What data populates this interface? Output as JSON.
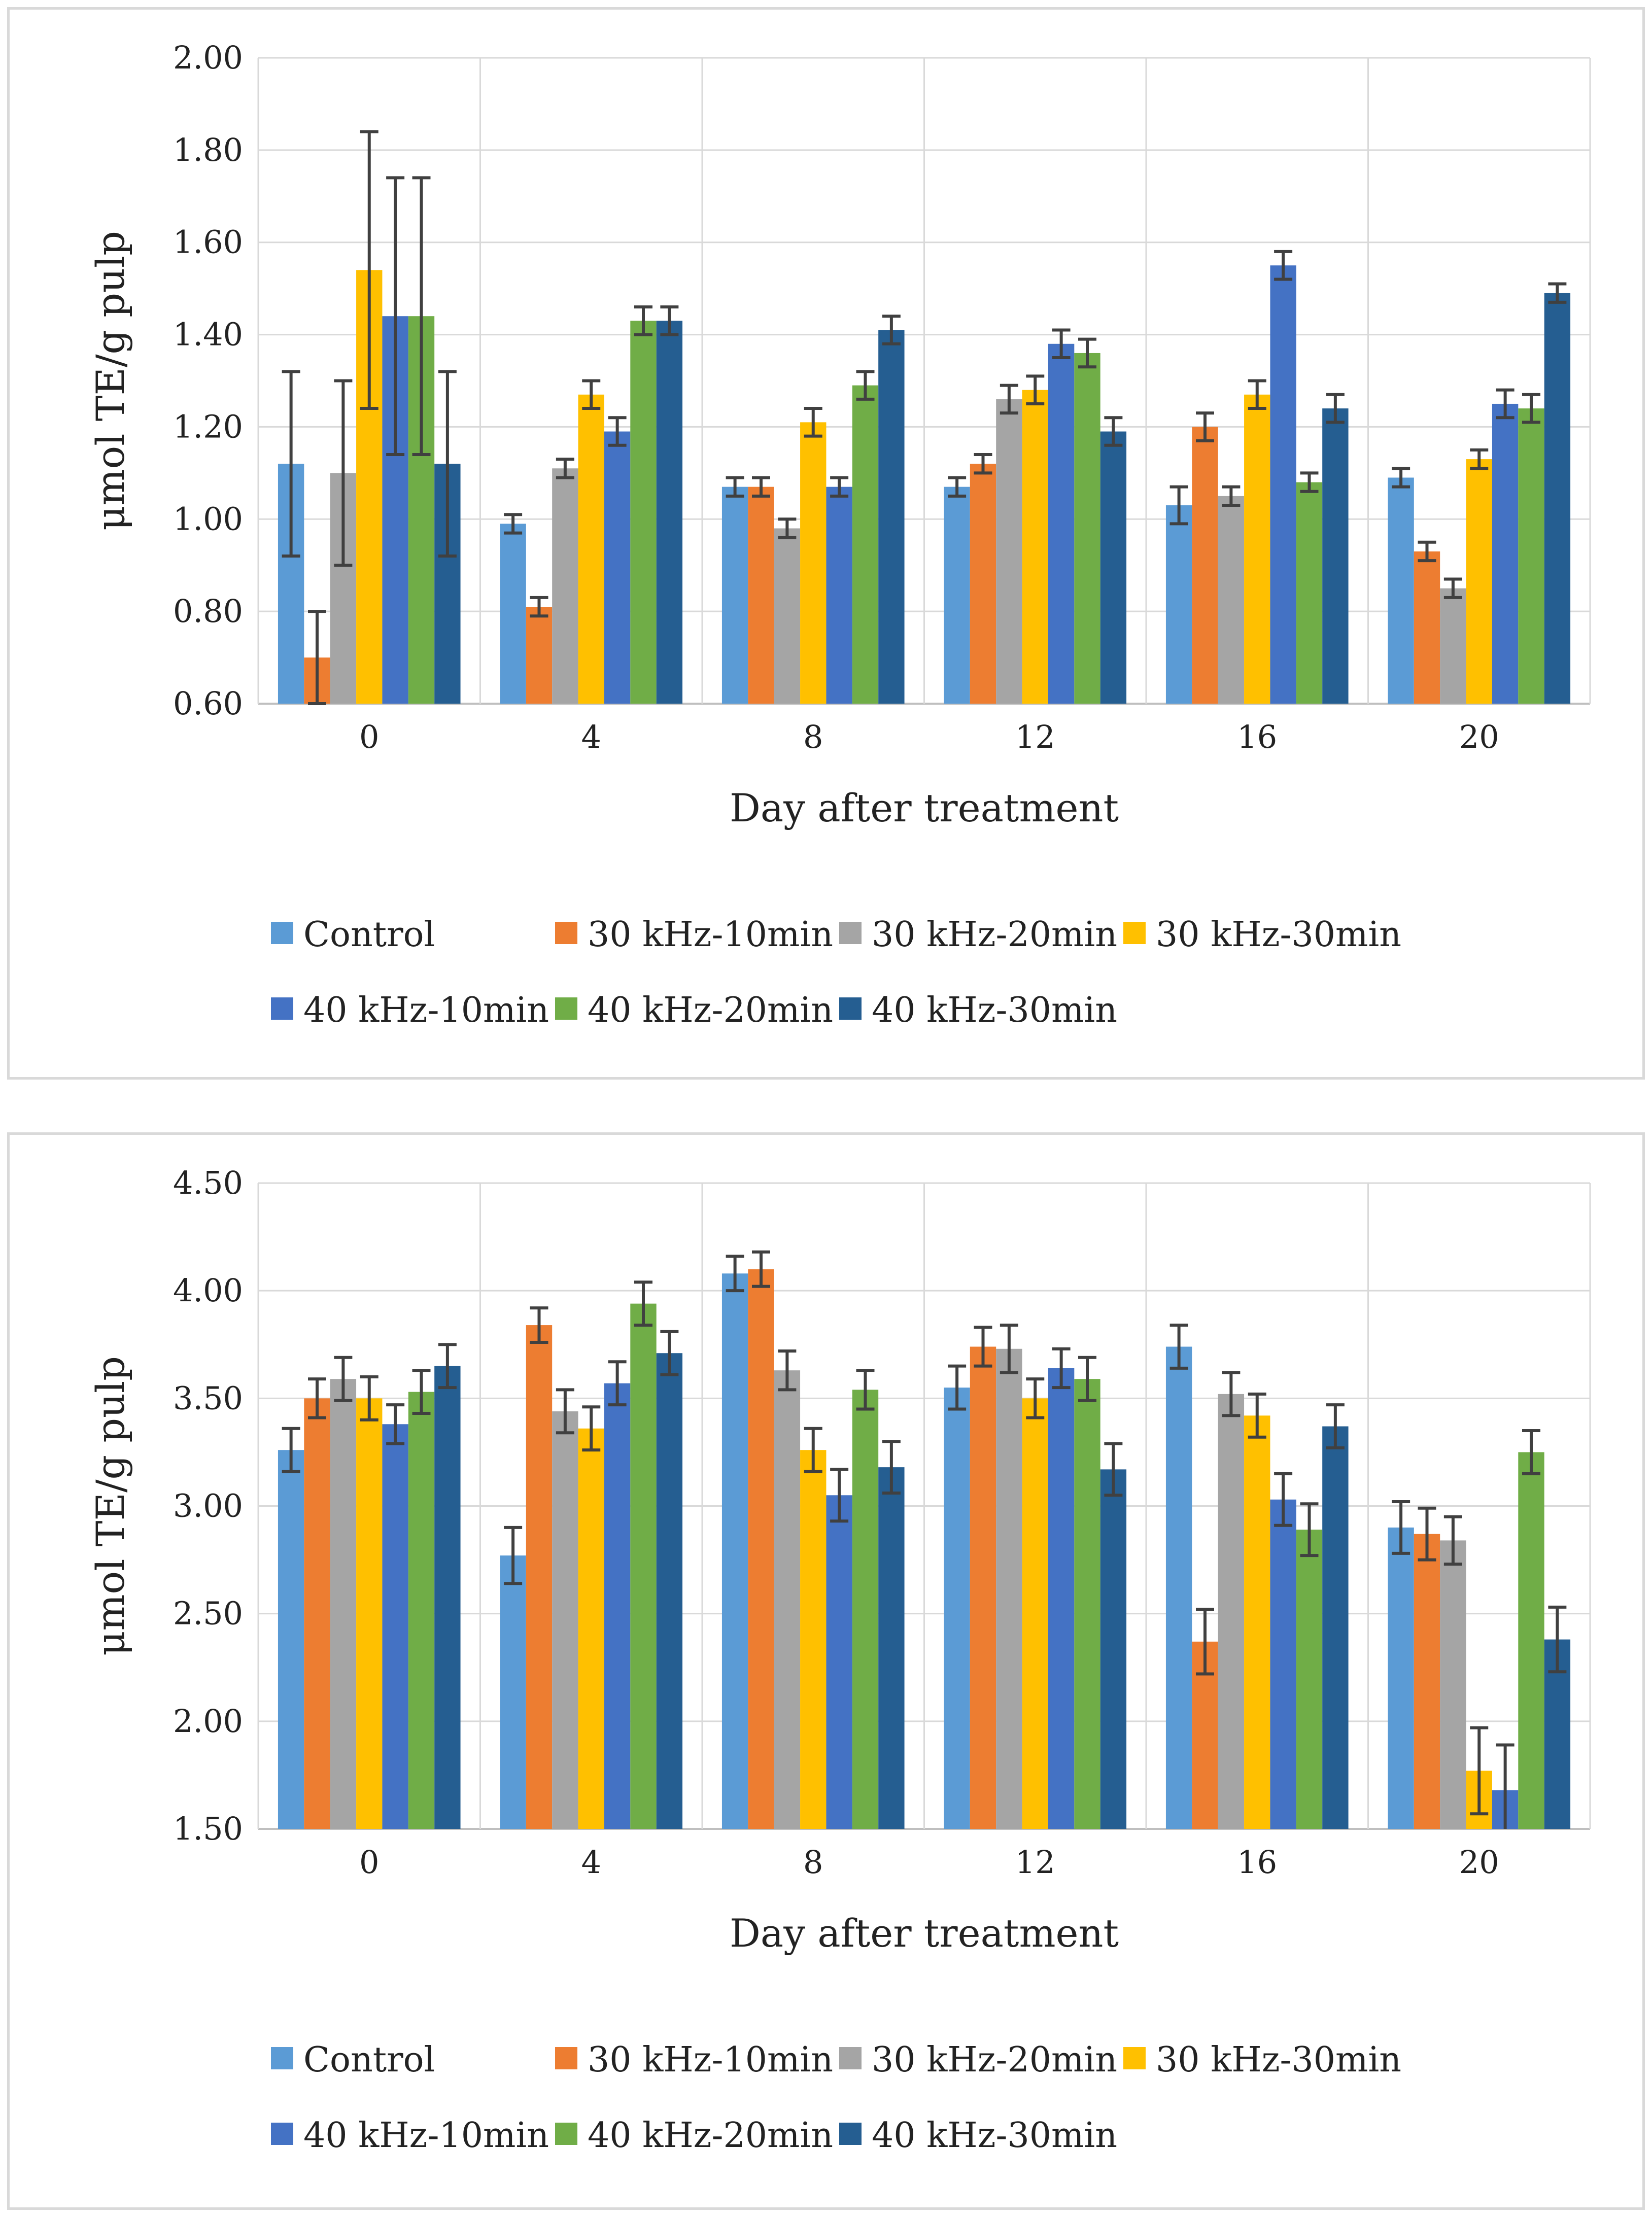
{
  "chart_data": [
    {
      "type": "bar",
      "title": "",
      "xlabel": "Day after treatment",
      "ylabel": "μmol TE/g pulp",
      "ylim": [
        0.6,
        2.0
      ],
      "ytick_step": 0.2,
      "categories": [
        "0",
        "4",
        "8",
        "12",
        "16",
        "20"
      ],
      "legend_position": "bottom",
      "grid": true,
      "series": [
        {
          "name": "Control",
          "color": "#5b9bd5",
          "values": [
            1.12,
            0.99,
            1.07,
            1.07,
            1.03,
            1.09
          ],
          "errors": [
            0.2,
            0.02,
            0.02,
            0.02,
            0.04,
            0.02
          ]
        },
        {
          "name": "30 kHz-10min",
          "color": "#ed7d31",
          "values": [
            0.7,
            0.81,
            1.07,
            1.12,
            1.2,
            0.93
          ],
          "errors": [
            0.1,
            0.02,
            0.02,
            0.02,
            0.03,
            0.02
          ]
        },
        {
          "name": "30 kHz-20min",
          "color": "#a5a5a5",
          "values": [
            1.1,
            1.11,
            0.98,
            1.26,
            1.05,
            0.85
          ],
          "errors": [
            0.2,
            0.02,
            0.02,
            0.03,
            0.02,
            0.02
          ]
        },
        {
          "name": "30 kHz-30min",
          "color": "#ffc000",
          "values": [
            1.54,
            1.27,
            1.21,
            1.28,
            1.27,
            1.13
          ],
          "errors": [
            0.3,
            0.03,
            0.03,
            0.03,
            0.03,
            0.02
          ]
        },
        {
          "name": "40 kHz-10min",
          "color": "#4472c4",
          "values": [
            1.44,
            1.19,
            1.07,
            1.38,
            1.55,
            1.25
          ],
          "errors": [
            0.3,
            0.03,
            0.02,
            0.03,
            0.03,
            0.03
          ]
        },
        {
          "name": "40 kHz-20min",
          "color": "#70ad47",
          "values": [
            1.44,
            1.43,
            1.29,
            1.36,
            1.08,
            1.24
          ],
          "errors": [
            0.3,
            0.03,
            0.03,
            0.03,
            0.02,
            0.03
          ]
        },
        {
          "name": "40 kHz-30min",
          "color": "#255e91",
          "values": [
            1.12,
            1.43,
            1.41,
            1.19,
            1.24,
            1.49
          ],
          "errors": [
            0.2,
            0.03,
            0.03,
            0.03,
            0.03,
            0.02
          ]
        }
      ]
    },
    {
      "type": "bar",
      "title": "",
      "xlabel": "Day after treatment",
      "ylabel": "μmol TE/g pulp",
      "ylim": [
        1.5,
        4.5
      ],
      "ytick_step": 0.5,
      "categories": [
        "0",
        "4",
        "8",
        "12",
        "16",
        "20"
      ],
      "legend_position": "bottom",
      "grid": true,
      "series": [
        {
          "name": "Control",
          "color": "#5b9bd5",
          "values": [
            3.26,
            2.77,
            4.08,
            3.55,
            3.74,
            2.9
          ],
          "errors": [
            0.1,
            0.13,
            0.08,
            0.1,
            0.1,
            0.12
          ]
        },
        {
          "name": "30 kHz-10min",
          "color": "#ed7d31",
          "values": [
            3.5,
            3.84,
            4.1,
            3.74,
            2.37,
            2.87
          ],
          "errors": [
            0.09,
            0.08,
            0.08,
            0.09,
            0.15,
            0.12
          ]
        },
        {
          "name": "30 kHz-20min",
          "color": "#a5a5a5",
          "values": [
            3.59,
            3.44,
            3.63,
            3.73,
            3.52,
            2.84
          ],
          "errors": [
            0.1,
            0.1,
            0.09,
            0.11,
            0.1,
            0.11
          ]
        },
        {
          "name": "30 kHz-30min",
          "color": "#ffc000",
          "values": [
            3.5,
            3.36,
            3.26,
            3.5,
            3.42,
            1.77
          ],
          "errors": [
            0.1,
            0.1,
            0.1,
            0.09,
            0.1,
            0.2
          ]
        },
        {
          "name": "40 kHz-10min",
          "color": "#4472c4",
          "values": [
            3.38,
            3.57,
            3.05,
            3.64,
            3.03,
            1.68
          ],
          "errors": [
            0.09,
            0.1,
            0.12,
            0.09,
            0.12,
            0.21
          ]
        },
        {
          "name": "40 kHz-20min",
          "color": "#70ad47",
          "values": [
            3.53,
            3.94,
            3.54,
            3.59,
            2.89,
            3.25
          ],
          "errors": [
            0.1,
            0.1,
            0.09,
            0.1,
            0.12,
            0.1
          ]
        },
        {
          "name": "40 kHz-30min",
          "color": "#255e91",
          "values": [
            3.65,
            3.71,
            3.18,
            3.17,
            3.37,
            2.38
          ],
          "errors": [
            0.1,
            0.1,
            0.12,
            0.12,
            0.1,
            0.15
          ]
        }
      ]
    }
  ]
}
